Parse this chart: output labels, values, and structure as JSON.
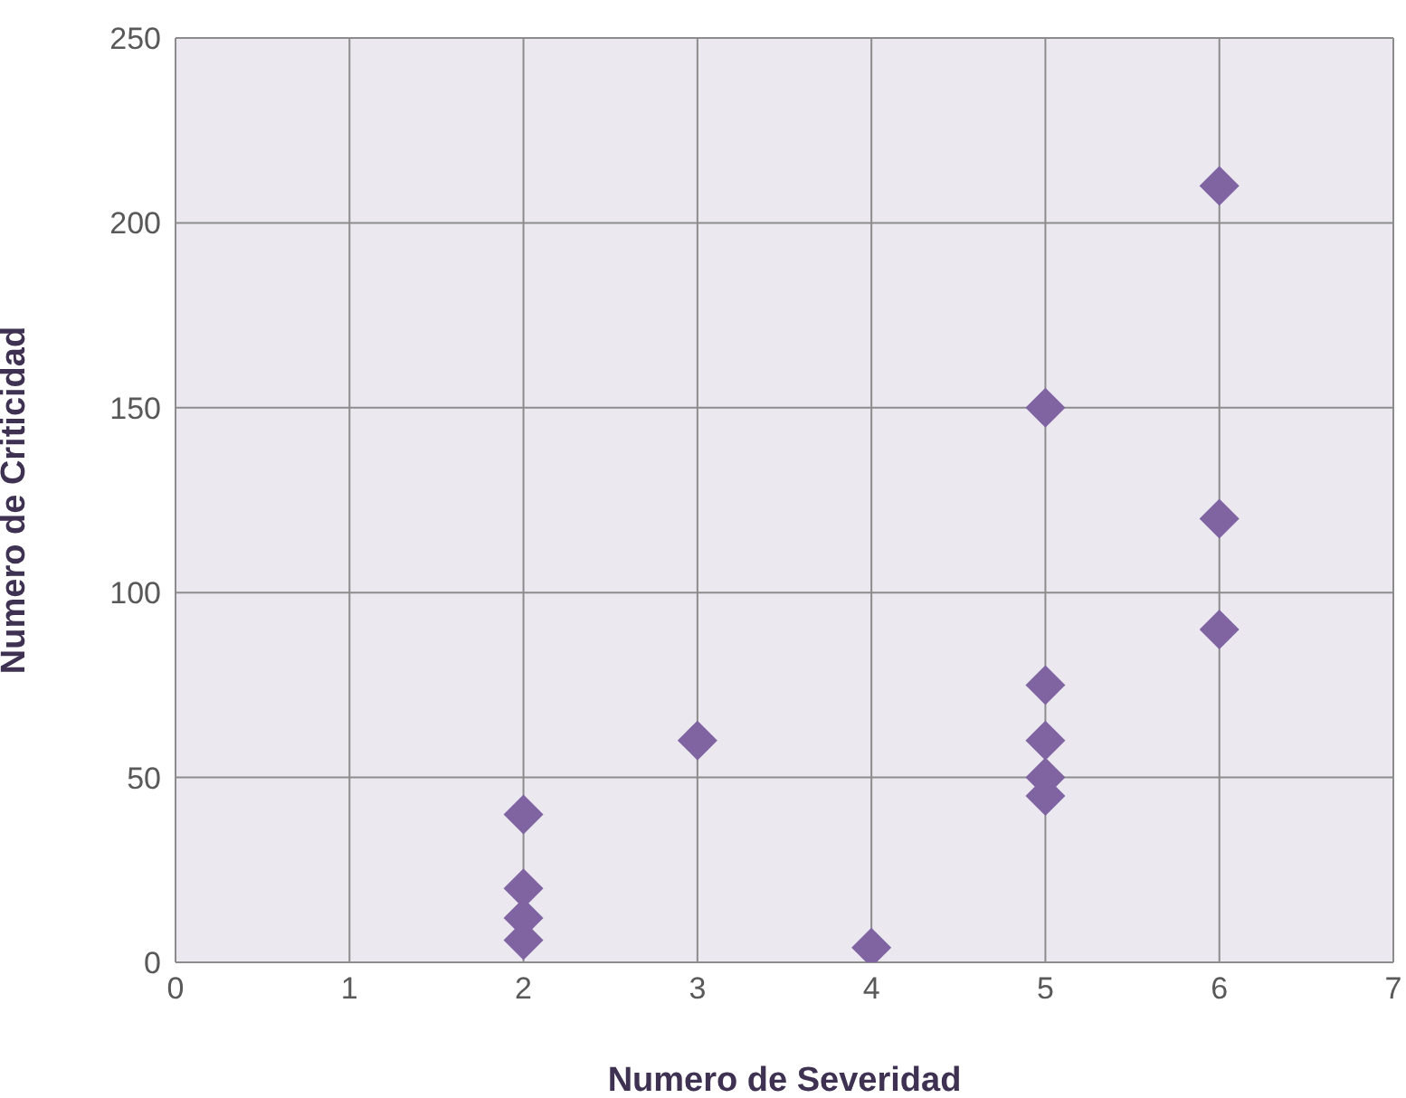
{
  "chart_data": {
    "type": "scatter",
    "xlabel": "Numero de Severidad",
    "ylabel": "Numero de Criticidad",
    "x": [
      2,
      2,
      2,
      2,
      3,
      4,
      5,
      5,
      5,
      5,
      5,
      6,
      6,
      6
    ],
    "values": [
      40,
      20,
      12,
      6,
      60,
      4,
      150,
      75,
      60,
      50,
      45,
      210,
      120,
      90
    ],
    "color": "#8064a2",
    "marker": "diamond",
    "xlim": [
      0,
      7
    ],
    "xticks": [
      0,
      1,
      2,
      3,
      4,
      5,
      6,
      7
    ],
    "ylim": [
      0,
      250
    ],
    "yticks": [
      0,
      50,
      100,
      150,
      200,
      250
    ],
    "grid": true
  }
}
